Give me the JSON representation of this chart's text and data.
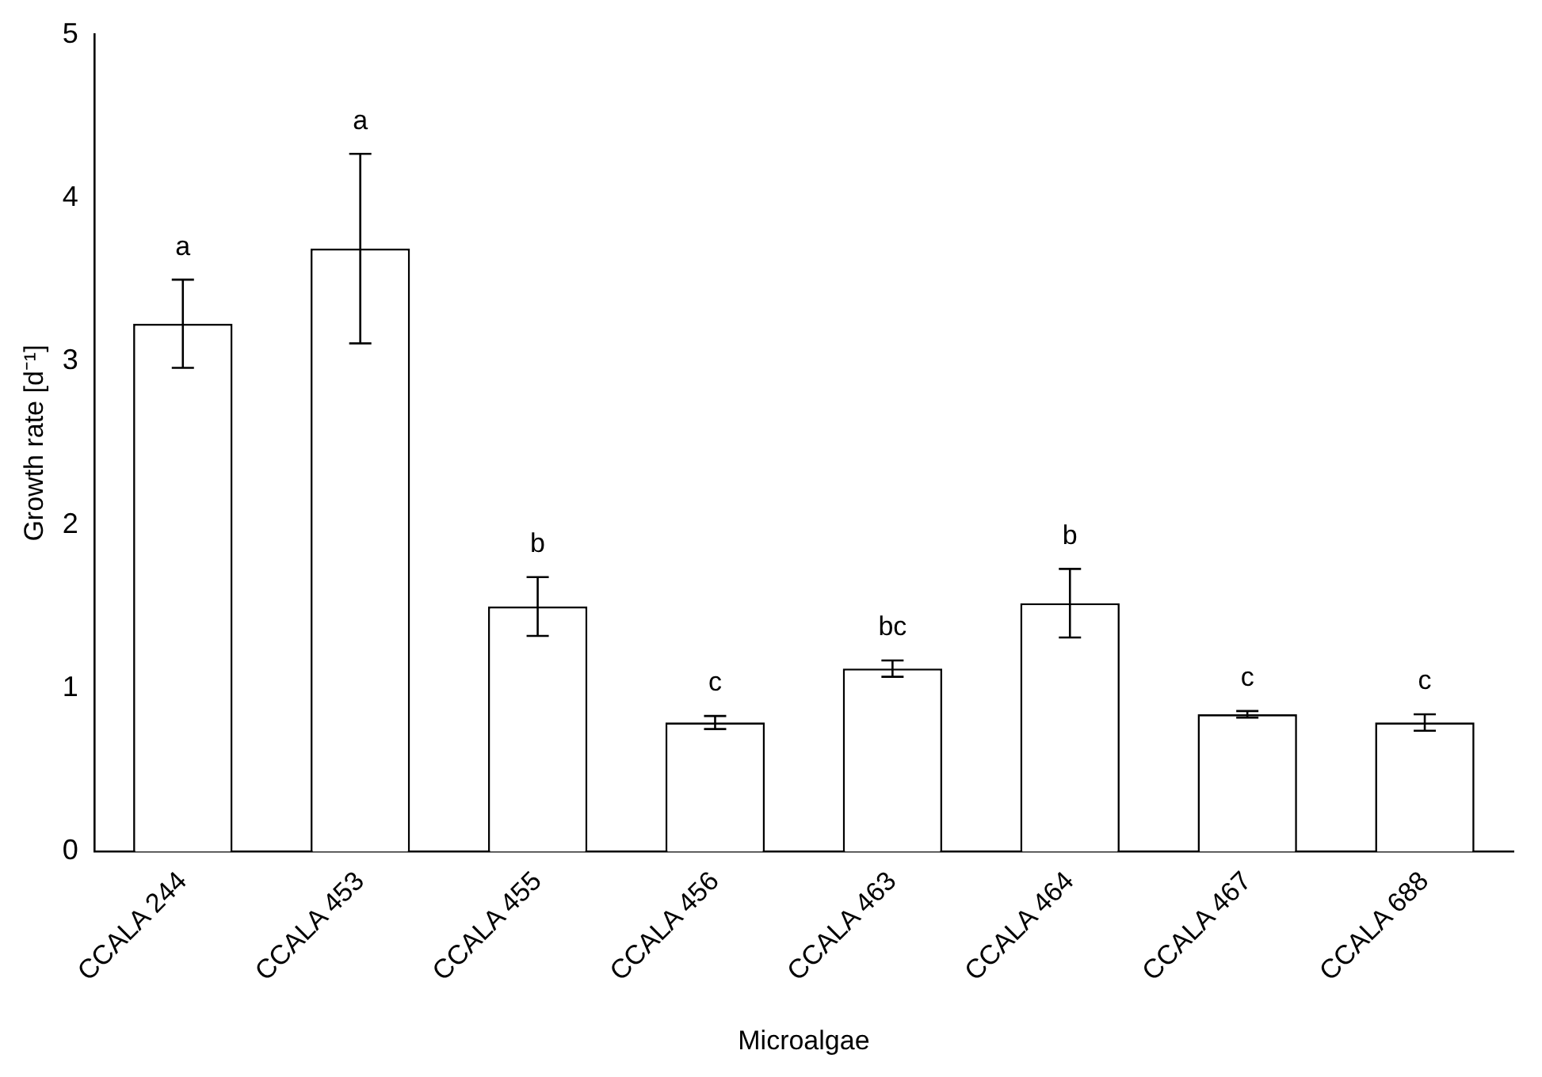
{
  "chart_data": {
    "type": "bar",
    "xlabel": "Microalgae",
    "ylabel": "Growth rate [d⁻¹]",
    "categories": [
      "CCALA 244",
      "CCALA 453",
      "CCALA 455",
      "CCALA 456",
      "CCALA 463",
      "CCALA 464",
      "CCALA 467",
      "CCALA 688"
    ],
    "values": [
      3.23,
      3.69,
      1.5,
      0.79,
      1.12,
      1.52,
      0.84,
      0.79
    ],
    "errors": [
      0.27,
      0.58,
      0.18,
      0.04,
      0.05,
      0.21,
      0.02,
      0.05
    ],
    "color": "#ffffff",
    "ylim": [
      0,
      5
    ],
    "yticks": [
      0,
      1,
      2,
      3,
      4,
      5
    ],
    "grid": false,
    "legend": false,
    "annotations": [
      {
        "text": "a",
        "x": "CCALA 244",
        "y": 3.5
      },
      {
        "text": "a",
        "x": "CCALA 453",
        "y": 4.27
      },
      {
        "text": "b",
        "x": "CCALA 455",
        "y": 1.68
      },
      {
        "text": "c",
        "x": "CCALA 456",
        "y": 0.83
      },
      {
        "text": "bc",
        "x": "CCALA 463",
        "y": 1.17
      },
      {
        "text": "b",
        "x": "CCALA 464",
        "y": 1.73
      },
      {
        "text": "c",
        "x": "CCALA 467",
        "y": 0.86
      },
      {
        "text": "c",
        "x": "CCALA 688",
        "y": 0.84
      }
    ]
  }
}
